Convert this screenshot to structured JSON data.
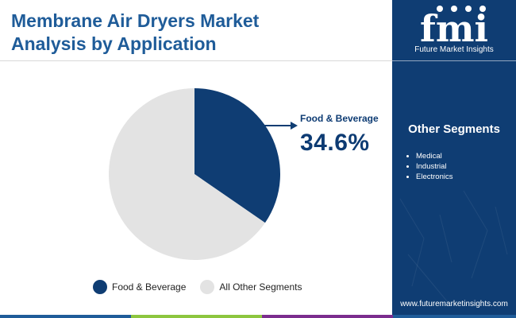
{
  "title": {
    "line1": "Membrane Air Dryers Market",
    "line2": "Analysis by Application"
  },
  "chart_data": {
    "type": "pie",
    "slices": [
      {
        "label": "Food & Beverage",
        "value": 34.6,
        "color": "#0f3d73"
      },
      {
        "label": "All Other Segments",
        "value": 65.4,
        "color": "#e3e3e3"
      }
    ],
    "callout": {
      "label": "Food & Beverage",
      "value": "34.6%"
    },
    "legend": [
      {
        "label": "Food & Beverage",
        "color": "#0f3d73"
      },
      {
        "label": "All Other Segments",
        "color": "#e3e3e3"
      }
    ],
    "legend_position": "bottom"
  },
  "sidebar": {
    "logo_text": "fmi",
    "logo_subtitle": "Future Market Insights",
    "heading": "Other Segments",
    "items": [
      "Medical",
      "Industrial",
      "Electronics"
    ],
    "url": "www.futuremarketinsights.com"
  },
  "colors": {
    "title": "#1f5c99",
    "accent_dark": "#0f3d73",
    "bottom_bar": [
      "#1f5c99",
      "#8dc63f",
      "#7b2d8e",
      "#1f5c99"
    ]
  }
}
